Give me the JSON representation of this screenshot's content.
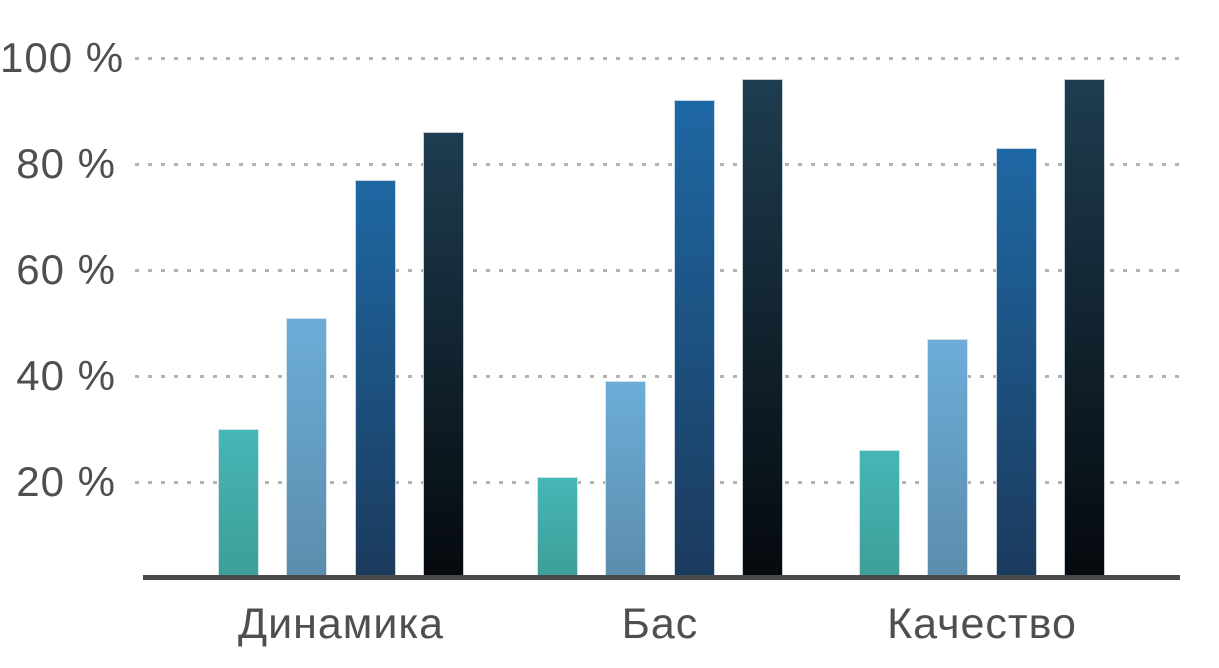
{
  "chart_data": {
    "type": "bar",
    "title": "",
    "categories": [
      "Динамика",
      "Бас",
      "Качество"
    ],
    "series": [
      {
        "name": "series-1-teal",
        "values": [
          30,
          21,
          26
        ],
        "color_top": "#46b6b6",
        "color_bottom": "#3d9e97"
      },
      {
        "name": "series-2-lightblue",
        "values": [
          51,
          39,
          47
        ],
        "color_top": "#6cadd8",
        "color_bottom": "#5b8cab"
      },
      {
        "name": "series-3-darkblue",
        "values": [
          77,
          92,
          83
        ],
        "color_top": "#1e68a4",
        "color_bottom": "#1b3a5c"
      },
      {
        "name": "series-4-navyblack",
        "values": [
          86,
          96,
          96
        ],
        "color_top": "#1e3d50",
        "color_bottom": "#05090d"
      }
    ],
    "y_ticks": [
      {
        "label": "100 %",
        "value": 100
      },
      {
        "label": "80 %",
        "value": 80
      },
      {
        "label": "60 %",
        "value": 60
      },
      {
        "label": "40 %",
        "value": 40
      },
      {
        "label": "20 %",
        "value": 20
      }
    ],
    "ylim": [
      0,
      100
    ],
    "xlabel": "",
    "ylabel": "",
    "grid": "horizontal-dotted",
    "legend": "none",
    "colors": {
      "axis_line": "#4a4a4a",
      "gridline": "#b3b3b3",
      "text": "#4f4f4f",
      "background": "#ffffff"
    }
  }
}
